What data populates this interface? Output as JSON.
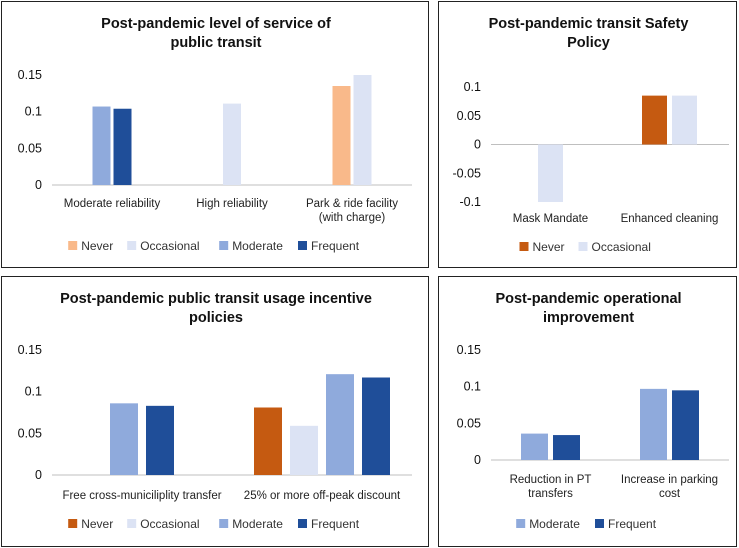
{
  "chart_data": [
    {
      "type": "bar",
      "title": [
        "Post-pandemic level of service of",
        "public transit"
      ],
      "categories": [
        [
          "Moderate reliability"
        ],
        [
          "High reliability"
        ],
        [
          "Park & ride facility",
          "(with charge)"
        ]
      ],
      "series": [
        {
          "name": "Never",
          "color": "#f9b98a",
          "values": [
            null,
            null,
            0.135
          ]
        },
        {
          "name": "Occasional",
          "color": "#dce3f4",
          "values": [
            null,
            0.111,
            0.15
          ]
        },
        {
          "name": "Moderate",
          "color": "#8faadc",
          "values": [
            0.107,
            null,
            null
          ]
        },
        {
          "name": "Frequent",
          "color": "#1f4e99",
          "values": [
            0.104,
            null,
            null
          ]
        }
      ],
      "yticks": [
        "0",
        "0.05",
        "0.1",
        "0.15"
      ],
      "ylim": [
        0,
        0.15
      ],
      "legend_position": "bottom"
    },
    {
      "type": "bar",
      "title": [
        "Post-pandemic transit Safety",
        "Policy"
      ],
      "categories": [
        [
          "Mask Mandate"
        ],
        [
          "Enhanced cleaning"
        ]
      ],
      "series": [
        {
          "name": "Never",
          "color": "#c55a11",
          "values": [
            null,
            0.085
          ]
        },
        {
          "name": "Occasional",
          "color": "#dce3f4",
          "values": [
            -0.1,
            0.085
          ]
        }
      ],
      "yticks": [
        "-0.1",
        "-0.05",
        "0",
        "0.05",
        "0.1"
      ],
      "ylim": [
        -0.1,
        0.1
      ],
      "legend_position": "bottom"
    },
    {
      "type": "bar",
      "title": [
        "Post-pandemic public transit usage incentive",
        "policies"
      ],
      "categories": [
        [
          "Free cross-municiliplity transfer"
        ],
        [
          "25% or more off-peak discount"
        ]
      ],
      "series": [
        {
          "name": "Never",
          "color": "#c55a11",
          "values": [
            null,
            0.081
          ]
        },
        {
          "name": "Occasional",
          "color": "#dce3f4",
          "values": [
            null,
            0.059
          ]
        },
        {
          "name": "Moderate",
          "color": "#8faadc",
          "values": [
            0.086,
            0.121
          ]
        },
        {
          "name": "Frequent",
          "color": "#1f4e99",
          "values": [
            0.083,
            0.117
          ]
        }
      ],
      "yticks": [
        "0",
        "0.05",
        "0.1",
        "0.15"
      ],
      "ylim": [
        0,
        0.15
      ],
      "legend_position": "bottom"
    },
    {
      "type": "bar",
      "title": [
        "Post-pandemic operational",
        "improvement"
      ],
      "categories": [
        [
          "Reduction in PT",
          "transfers"
        ],
        [
          "Increase in  parking",
          "cost"
        ]
      ],
      "series": [
        {
          "name": "Moderate",
          "color": "#8faadc",
          "values": [
            0.036,
            0.097
          ]
        },
        {
          "name": "Frequent",
          "color": "#1f4e99",
          "values": [
            0.034,
            0.095
          ]
        }
      ],
      "yticks": [
        "0",
        "0.05",
        "0.1",
        "0.15"
      ],
      "ylim": [
        0,
        0.15
      ],
      "legend_position": "bottom"
    }
  ]
}
